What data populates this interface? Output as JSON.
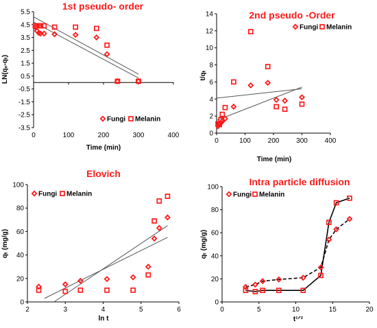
{
  "colors": {
    "marker": "#ff1a1a",
    "title": "#ff1a1a",
    "fit_line": "#555555",
    "axis": "#000000"
  },
  "chart_data": [
    {
      "id": "p1",
      "type": "scatter",
      "title": "1st pseudo- order",
      "xlabel": "Time (min)",
      "ylabel": "LN(qₑ-qₜ)",
      "xlim": [
        0,
        400
      ],
      "ylim": [
        -3.5,
        5.5
      ],
      "xticks": [
        0,
        100,
        200,
        300,
        400
      ],
      "yticks": [
        -3.5,
        -2.5,
        -1.5,
        -0.5,
        0.5,
        1.5,
        2.5,
        3.5,
        4.5,
        5.5
      ],
      "xtick_labels": [
        "0",
        "100",
        "200",
        "300",
        "400"
      ],
      "ytick_labels": [
        "-3.5",
        "-2.5",
        "-1.5",
        "-0.5",
        "0.5",
        "1.5",
        "2.5",
        "3.5",
        "4.5",
        "5.5"
      ],
      "legend": {
        "position": "bottom-right",
        "entries": [
          "Fungi",
          "Melanin"
        ]
      },
      "series": [
        {
          "name": "Fungi",
          "marker": "diamond",
          "x": [
            5,
            10,
            15,
            20,
            30,
            60,
            120,
            180,
            210,
            240,
            300
          ],
          "y": [
            4.3,
            4.0,
            3.85,
            3.8,
            3.8,
            3.75,
            3.7,
            3.5,
            2.2,
            0.1,
            0.1
          ]
        },
        {
          "name": "Melanin",
          "marker": "square",
          "x": [
            5,
            10,
            15,
            20,
            30,
            60,
            120,
            180,
            210,
            240,
            300
          ],
          "y": [
            4.4,
            4.4,
            4.4,
            4.4,
            4.4,
            4.3,
            4.3,
            4.2,
            2.9,
            0.1,
            0.1
          ]
        }
      ],
      "fit_lines": [
        {
          "x": [
            0,
            300
          ],
          "y": [
            5.1,
            0.65
          ]
        },
        {
          "x": [
            0,
            300
          ],
          "y": [
            4.7,
            0.35
          ]
        }
      ]
    },
    {
      "id": "p2",
      "type": "scatter",
      "title": "2nd pseudo -Order",
      "xlabel": "Time (min)",
      "ylabel": "t/qₜ",
      "xlim": [
        0,
        400
      ],
      "ylim": [
        0,
        14
      ],
      "xticks": [
        0,
        100,
        200,
        300,
        400
      ],
      "yticks": [
        0,
        2,
        4,
        6,
        8,
        10,
        12,
        14
      ],
      "xtick_labels": [
        "0",
        "100",
        "200",
        "300",
        "400"
      ],
      "ytick_labels": [
        "0",
        "2",
        "4",
        "6",
        "8",
        "10",
        "12",
        "14"
      ],
      "legend": {
        "position": "top-right",
        "entries": [
          "Fungi",
          "Melanin"
        ]
      },
      "series": [
        {
          "name": "Fungi",
          "marker": "diamond",
          "x": [
            5,
            10,
            15,
            20,
            30,
            60,
            120,
            180,
            210,
            240,
            300
          ],
          "y": [
            0.8,
            1.0,
            1.2,
            1.4,
            1.7,
            3.1,
            5.6,
            5.9,
            3.9,
            3.8,
            4.2
          ]
        },
        {
          "name": "Melanin",
          "marker": "square",
          "x": [
            5,
            10,
            15,
            20,
            30,
            60,
            120,
            180,
            210,
            240,
            300
          ],
          "y": [
            1.1,
            1.0,
            1.6,
            2.2,
            3.0,
            6.0,
            11.9,
            7.8,
            3.1,
            2.8,
            3.4
          ]
        }
      ],
      "fit_lines": [
        {
          "x": [
            0,
            300
          ],
          "y": [
            4.1,
            5.2
          ]
        },
        {
          "x": [
            0,
            300
          ],
          "y": [
            1.5,
            5.4
          ]
        }
      ]
    },
    {
      "id": "p3",
      "type": "scatter",
      "title": "Elovich",
      "xlabel": "ln t",
      "ylabel": "qₜ (mg/g)",
      "xlim": [
        2,
        6
      ],
      "ylim": [
        0,
        100
      ],
      "xticks": [
        2,
        3,
        4,
        5,
        6
      ],
      "yticks": [
        0,
        20,
        40,
        60,
        80,
        100
      ],
      "xtick_labels": [
        "2",
        "3",
        "4",
        "5",
        "6"
      ],
      "ytick_labels": [
        "0",
        "20",
        "40",
        "60",
        "80",
        "100"
      ],
      "legend": {
        "position": "top-left",
        "entries": [
          "Fungi",
          "Melanin"
        ]
      },
      "series": [
        {
          "name": "Fungi",
          "marker": "diamond",
          "x": [
            2.3,
            3.0,
            3.4,
            4.1,
            4.79,
            5.19,
            5.35,
            5.48,
            5.7
          ],
          "y": [
            13,
            15,
            18,
            19.5,
            21,
            30,
            54,
            63,
            72
          ]
        },
        {
          "name": "Melanin",
          "marker": "square",
          "x": [
            2.3,
            3.0,
            3.4,
            4.1,
            4.79,
            5.19,
            5.35,
            5.48,
            5.7
          ],
          "y": [
            10,
            9,
            10,
            10,
            10,
            23,
            69,
            86,
            90
          ]
        }
      ],
      "fit_lines": [
        {
          "x": [
            2.7,
            5.7
          ],
          "y": [
            0,
            65
          ]
        },
        {
          "x": [
            2.45,
            5.7
          ],
          "y": [
            3,
            55
          ]
        }
      ]
    },
    {
      "id": "p4",
      "type": "line",
      "title": "Intra particle diffusion",
      "xlabel": "t¹ᐟ²",
      "ylabel": "qₜ (mg/g)",
      "xlim": [
        0,
        20
      ],
      "ylim": [
        0,
        100
      ],
      "xticks": [
        0,
        5,
        10,
        15,
        20
      ],
      "yticks": [
        0,
        20,
        40,
        60,
        80,
        100
      ],
      "xtick_labels": [
        "0",
        "5",
        "10",
        "15",
        "20"
      ],
      "ytick_labels": [
        "0",
        "20",
        "40",
        "60",
        "80",
        "100"
      ],
      "legend": {
        "position": "top-left",
        "entries": [
          "Fungi",
          "Melanin"
        ]
      },
      "series": [
        {
          "name": "Fungi",
          "marker": "diamond",
          "line": "dashed",
          "x": [
            3.2,
            4.5,
            5.5,
            7.7,
            11.0,
            13.4,
            14.5,
            15.5,
            17.3
          ],
          "y": [
            13,
            15,
            18,
            19.5,
            21,
            30,
            54,
            63,
            72
          ]
        },
        {
          "name": "Melanin",
          "marker": "square",
          "line": "solid",
          "x": [
            3.2,
            4.5,
            5.5,
            7.7,
            11.0,
            13.4,
            14.5,
            15.5,
            17.3
          ],
          "y": [
            10,
            9,
            10,
            10,
            10,
            23,
            69,
            86,
            90
          ]
        }
      ],
      "fit_lines": []
    }
  ]
}
